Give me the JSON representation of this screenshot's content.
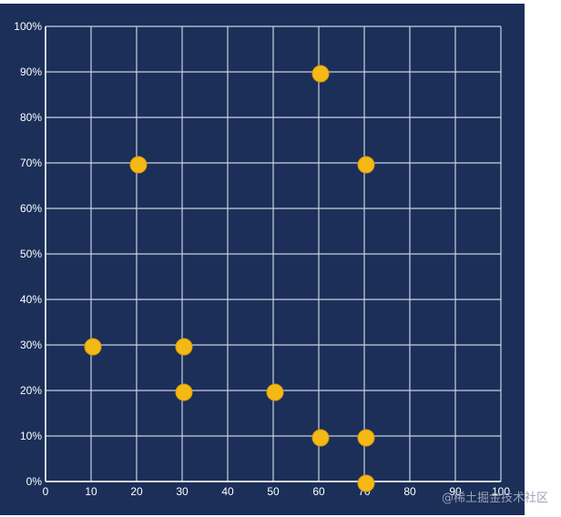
{
  "chart_data": {
    "type": "scatter",
    "title": "",
    "xlabel": "",
    "ylabel": "",
    "xlim": [
      0,
      100
    ],
    "ylim": [
      0,
      100
    ],
    "x_ticks": [
      "0",
      "10",
      "20",
      "30",
      "40",
      "50",
      "60",
      "70",
      "80",
      "90",
      "100"
    ],
    "y_ticks": [
      "0%",
      "10%",
      "20%",
      "30%",
      "40%",
      "50%",
      "60%",
      "70%",
      "80%",
      "90%",
      "100%"
    ],
    "grid": true,
    "series": [
      {
        "points": [
          {
            "x": 10,
            "y": 30
          },
          {
            "x": 20,
            "y": 70
          },
          {
            "x": 30,
            "y": 30
          },
          {
            "x": 30,
            "y": 20
          },
          {
            "x": 50,
            "y": 20
          },
          {
            "x": 60,
            "y": 90
          },
          {
            "x": 60,
            "y": 10
          },
          {
            "x": 70,
            "y": 70
          },
          {
            "x": 70,
            "y": 10
          },
          {
            "x": 70,
            "y": 0
          }
        ]
      }
    ],
    "colors": {
      "background": "#1b2f59",
      "grid": "#c9d0e0",
      "axis": "#ffffff",
      "point": "#f5b915",
      "point_stroke": "#d99a0c",
      "text": "#ffffff"
    }
  },
  "watermark": "@稀土掘金技术社区"
}
